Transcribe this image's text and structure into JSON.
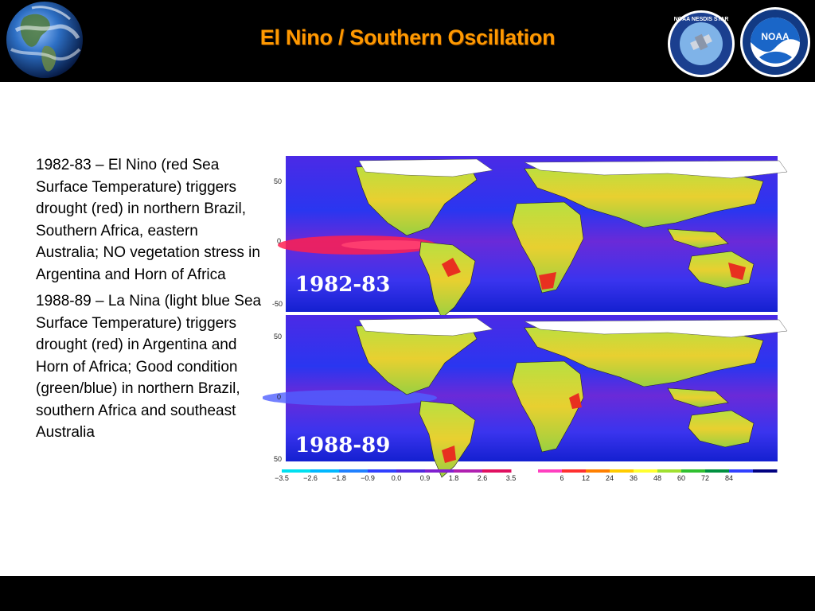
{
  "header": {
    "title": "El Nino / Southern Oscillation"
  },
  "logos": {
    "nesdis": "NOAA NESDIS STAR",
    "noaa": "NOAA"
  },
  "body": {
    "paragraph1": "1982-83 – El Nino (red Sea Surface Temperature) triggers drought (red) in northern Brazil, Southern Africa, eastern Australia; NO vegetation stress in Argentina and Horn of Africa",
    "paragraph2": "1988-89 – La Nina (light blue Sea Surface Temperature) triggers drought (red) in Argentina and Horn of Africa; Good condition (green/blue) in northern Brazil, southern Africa and southeast Australia"
  },
  "maps": [
    {
      "label": "1982-83",
      "lat_labels": [
        "50",
        "0",
        "-50"
      ]
    },
    {
      "label": "1988-89",
      "lat_labels": [
        "50",
        "0",
        "50"
      ]
    }
  ],
  "legend": {
    "sst_ticks": [
      "−3.5",
      "−2.6",
      "−1.8",
      "−0.9",
      "0.0",
      "0.9",
      "1.8",
      "2.6",
      "3.5"
    ],
    "sst_colors": [
      "#00e0f0",
      "#00b8ff",
      "#2080ff",
      "#3040ff",
      "#5028e0",
      "#8020d0",
      "#b020b0",
      "#e01060"
    ],
    "vci_ticks": [
      "6",
      "12",
      "24",
      "36",
      "48",
      "60",
      "72",
      "84"
    ],
    "vci_colors": [
      "#ff40c0",
      "#ff3030",
      "#ff8000",
      "#ffcc00",
      "#ffff30",
      "#a0e030",
      "#30c030",
      "#009040",
      "#3040ff",
      "#000080"
    ]
  }
}
